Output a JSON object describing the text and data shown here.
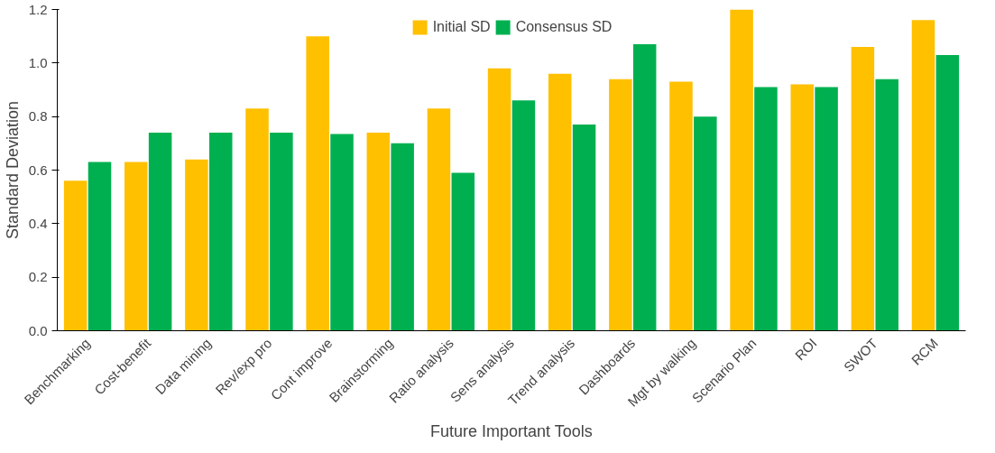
{
  "chart_data": {
    "type": "bar",
    "xlabel": "Future Important Tools",
    "ylabel": "Standard Deviation",
    "categories": [
      "Benchmarking",
      "Cost-benefit",
      "Data mining",
      "Rev/exp pro",
      "Cont improve",
      "Brainstorming",
      "Ratio analysis",
      "Sens analysis",
      "Trend analysis",
      "Dashboards",
      "Mgt by walking",
      "Scenario Plan",
      "ROI",
      "SWOT",
      "RCM"
    ],
    "series": [
      {
        "name": "Initial SD",
        "color": "#ffc000",
        "values": [
          0.56,
          0.63,
          0.64,
          0.83,
          1.1,
          0.74,
          0.83,
          0.98,
          0.96,
          0.94,
          0.93,
          1.2,
          0.92,
          1.06,
          1.16
        ]
      },
      {
        "name": "Consensus SD",
        "color": "#00b050",
        "values": [
          0.63,
          0.74,
          0.74,
          0.74,
          0.735,
          0.7,
          0.59,
          0.86,
          0.77,
          1.07,
          0.8,
          0.91,
          0.91,
          0.94,
          1.03
        ]
      }
    ],
    "ylim": [
      0,
      1.2
    ],
    "yticks": [
      {
        "value": 0,
        "label": "0.0"
      },
      {
        "value": 0.2,
        "label": "0.2"
      },
      {
        "value": 0.4,
        "label": "0.4"
      },
      {
        "value": 0.6,
        "label": "0.6"
      },
      {
        "value": 0.8,
        "label": "0.8"
      },
      {
        "value": 1.0,
        "label": "1.0"
      },
      {
        "value": 1.2,
        "label": "1.2"
      }
    ],
    "grid": false,
    "legend": "top"
  }
}
